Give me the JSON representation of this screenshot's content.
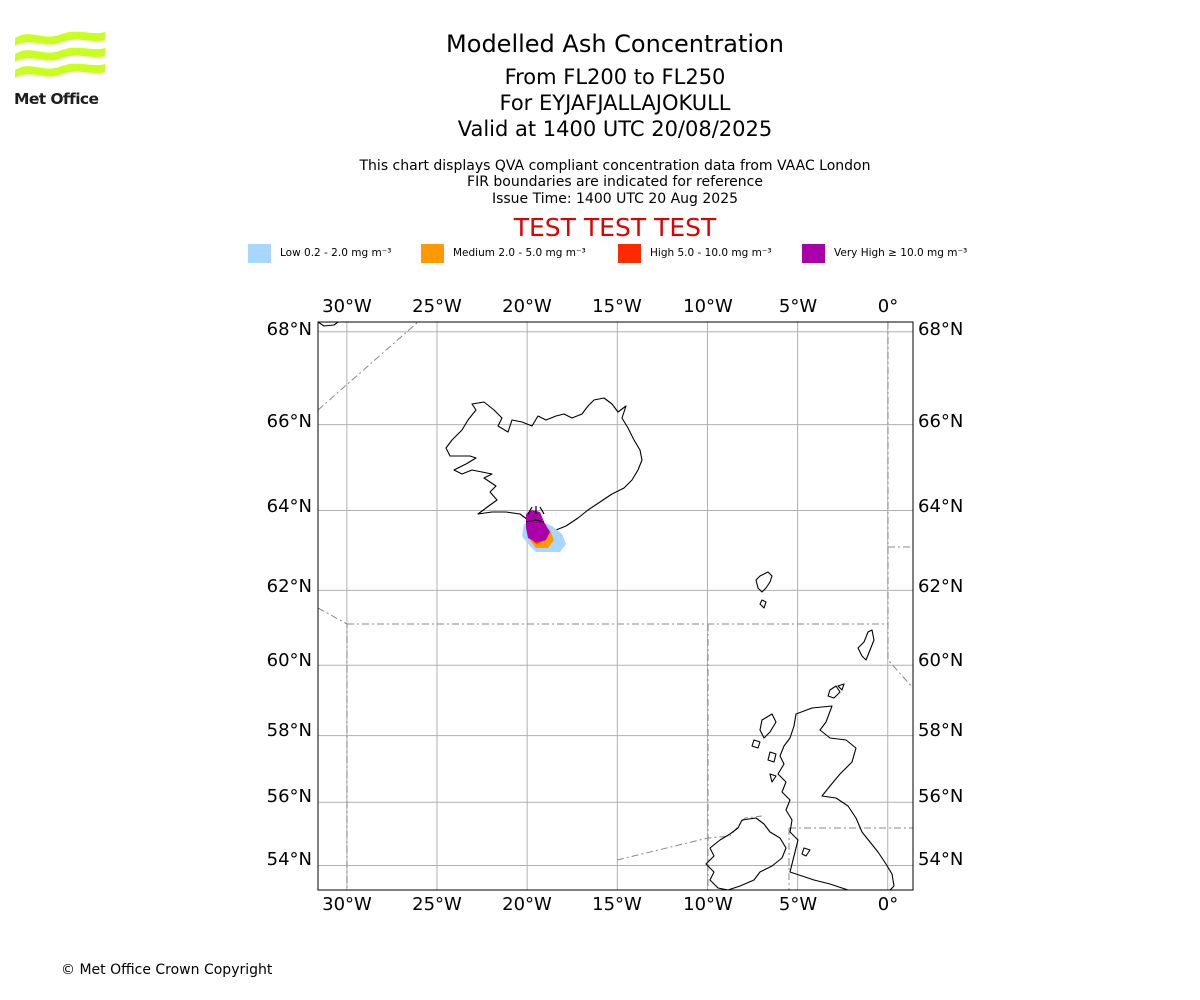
{
  "logo": {
    "name": "Met Office",
    "wordmark": "Met Office",
    "wave_color": "#c8ff1e"
  },
  "header": {
    "title": "Modelled Ash Concentration",
    "level_range": "From FL200 to FL250",
    "volcano": "For EYJAFJALLAJOKULL",
    "valid_time": "Valid at 1400 UTC 20/08/2025",
    "description": "This chart displays QVA compliant concentration data from VAAC London",
    "fir_note": "FIR boundaries are indicated for reference",
    "issue_time": "Issue Time: 1400 UTC 20 Aug 2025",
    "test_banner": "TEST TEST TEST"
  },
  "legend": [
    {
      "label": "Low 0.2 - 2.0 mg m⁻³",
      "color": "#a7d6ff"
    },
    {
      "label": "Medium 2.0 - 5.0 mg m⁻³",
      "color": "#ff9900"
    },
    {
      "label": "High 5.0 - 10.0 mg m⁻³",
      "color": "#ff2a00"
    },
    {
      "label": "Very High ≥ 10.0 mg m⁻³",
      "color": "#aa00aa"
    }
  ],
  "map": {
    "lon_range": [
      -31.6,
      1.4
    ],
    "lat_range": [
      53.2,
      68.2
    ],
    "longitude_ticks": [
      "30°W",
      "25°W",
      "20°W",
      "15°W",
      "10°W",
      "5°W",
      "0°"
    ],
    "latitude_ticks": [
      "68°N",
      "66°N",
      "64°N",
      "62°N",
      "60°N",
      "58°N",
      "56°N",
      "54°N"
    ],
    "gridlines": true,
    "volcano_name": "EYJAFJALLAJOKULL",
    "coastline_color": "#000000",
    "grid_color": "#b0b0b0",
    "fir_color": "#888888"
  },
  "footer": {
    "copyright": "© Met Office Crown Copyright"
  }
}
